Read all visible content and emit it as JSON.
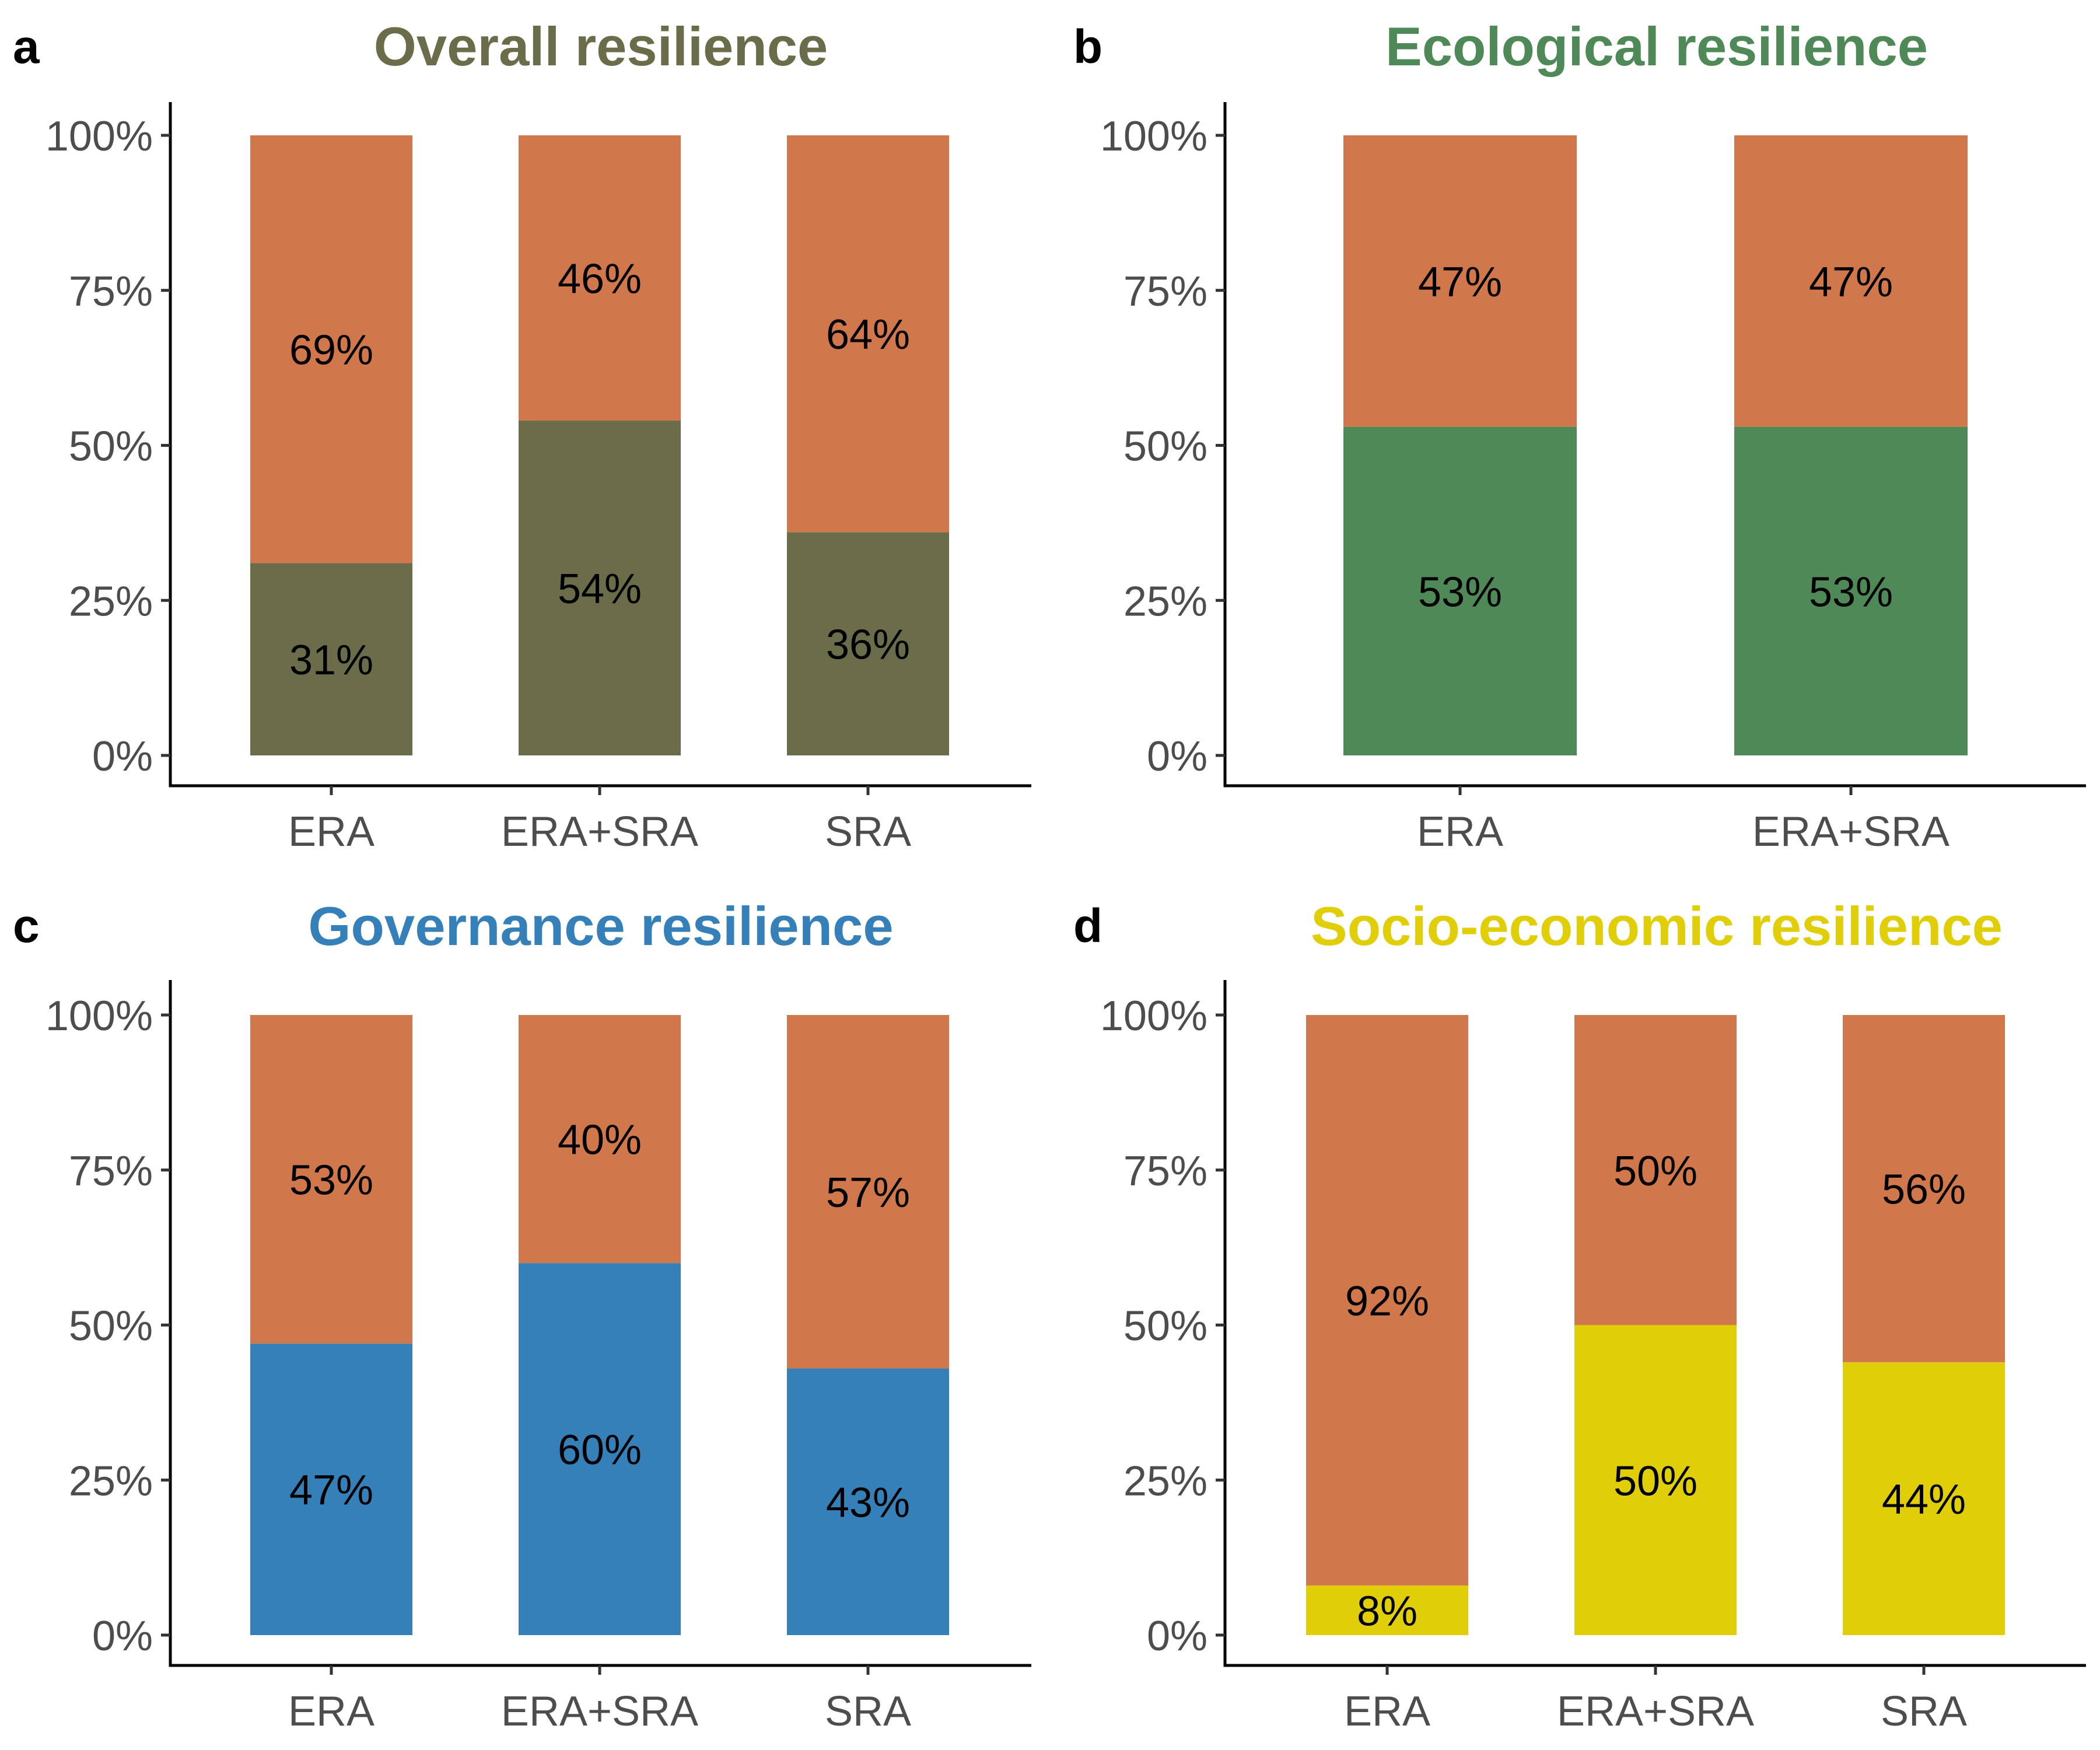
{
  "colors": {
    "other": "#D0784C",
    "overall": "#6B6C4A",
    "ecological": "#4E8957",
    "governance": "#3680B9",
    "socioeconomic": "#E0CE08",
    "tick_text": "#4d4d4d"
  },
  "chart_data": [
    {
      "panel": "a",
      "type": "bar",
      "stacked": true,
      "title": "Overall resilience",
      "title_color": "#6B6C4A",
      "categories": [
        "ERA",
        "ERA+SRA",
        "SRA"
      ],
      "series": [
        {
          "color": "#6B6C4A",
          "values": [
            31,
            54,
            36
          ],
          "labels": [
            "31%",
            "54%",
            "36%"
          ]
        },
        {
          "color": "#D0784C",
          "values": [
            69,
            46,
            64
          ],
          "labels": [
            "69%",
            "46%",
            "64%"
          ]
        }
      ],
      "y_ticks": [
        "0%",
        "25%",
        "50%",
        "75%",
        "100%"
      ],
      "ylim": [
        0,
        100
      ],
      "grid": false
    },
    {
      "panel": "b",
      "type": "bar",
      "stacked": true,
      "title": "Ecological resilience",
      "title_color": "#4E8957",
      "categories": [
        "ERA",
        "ERA+SRA"
      ],
      "series": [
        {
          "color": "#4E8957",
          "values": [
            53,
            53
          ],
          "labels": [
            "53%",
            "53%"
          ]
        },
        {
          "color": "#D0784C",
          "values": [
            47,
            47
          ],
          "labels": [
            "47%",
            "47%"
          ]
        }
      ],
      "y_ticks": [
        "0%",
        "25%",
        "50%",
        "75%",
        "100%"
      ],
      "ylim": [
        0,
        100
      ],
      "grid": false
    },
    {
      "panel": "c",
      "type": "bar",
      "stacked": true,
      "title": "Governance resilience",
      "title_color": "#3680B9",
      "categories": [
        "ERA",
        "ERA+SRA",
        "SRA"
      ],
      "series": [
        {
          "color": "#3680B9",
          "values": [
            47,
            60,
            43
          ],
          "labels": [
            "47%",
            "60%",
            "43%"
          ]
        },
        {
          "color": "#D0784C",
          "values": [
            53,
            40,
            57
          ],
          "labels": [
            "53%",
            "40%",
            "57%"
          ]
        }
      ],
      "y_ticks": [
        "0%",
        "25%",
        "50%",
        "75%",
        "100%"
      ],
      "ylim": [
        0,
        100
      ],
      "grid": false
    },
    {
      "panel": "d",
      "type": "bar",
      "stacked": true,
      "title": "Socio-economic resilience",
      "title_color": "#E0CE08",
      "categories": [
        "ERA",
        "ERA+SRA",
        "SRA"
      ],
      "series": [
        {
          "color": "#E0CE08",
          "values": [
            8,
            50,
            44
          ],
          "labels": [
            "8%",
            "50%",
            "44%"
          ]
        },
        {
          "color": "#D0784C",
          "values": [
            92,
            50,
            56
          ],
          "labels": [
            "92%",
            "50%",
            "56%"
          ]
        }
      ],
      "y_ticks": [
        "0%",
        "25%",
        "50%",
        "75%",
        "100%"
      ],
      "ylim": [
        0,
        100
      ],
      "grid": false
    }
  ]
}
